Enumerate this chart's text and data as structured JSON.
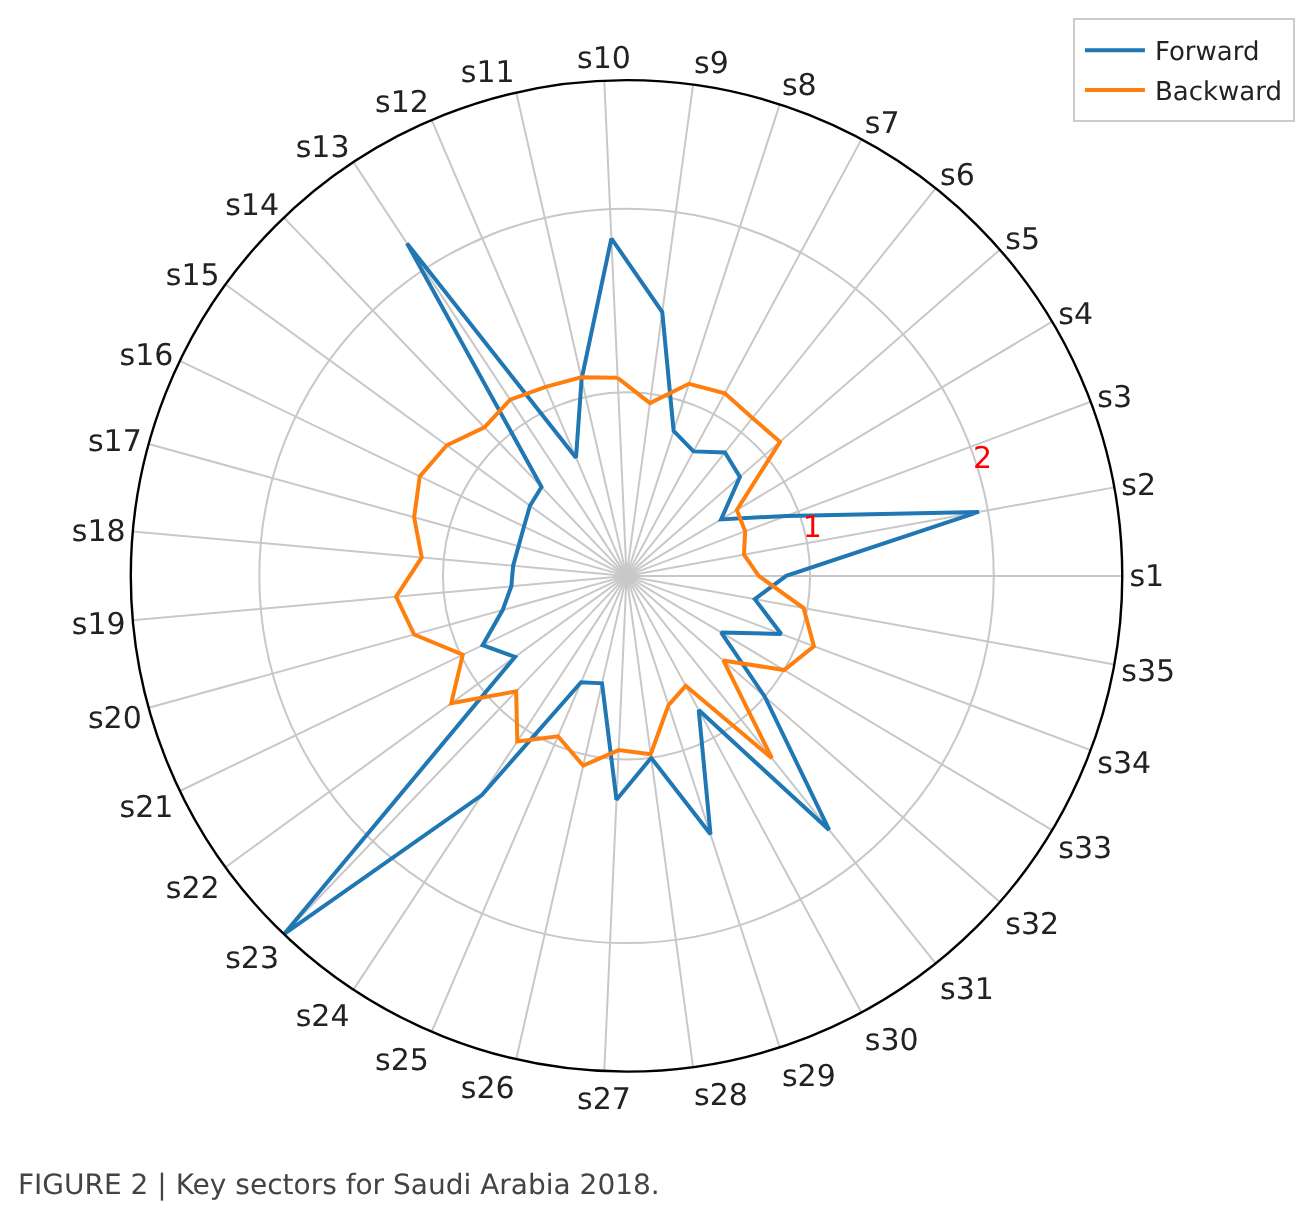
{
  "chart_data": {
    "type": "radar",
    "categories": [
      "s10",
      "s9",
      "s8",
      "s7",
      "s6",
      "s5",
      "s4",
      "s3",
      "s2",
      "s1",
      "s35",
      "s34",
      "s33",
      "s32",
      "s31",
      "s30",
      "s29",
      "s28",
      "s27",
      "s26",
      "s25",
      "s24",
      "s23",
      "s22",
      "s21",
      "s20",
      "s19",
      "s18",
      "s17",
      "s16",
      "s15",
      "s14",
      "s13",
      "s12",
      "s11"
    ],
    "series": [
      {
        "name": "Forward",
        "color": "#1f77b4",
        "values": [
          1.84,
          1.45,
          0.83,
          0.77,
          0.86,
          0.82,
          0.6,
          0.93,
          1.95,
          0.87,
          0.71,
          0.9,
          0.6,
          1.0,
          1.77,
          0.83,
          1.48,
          1.0,
          1.22,
          0.6,
          0.63,
          1.43,
          2.7,
          0.75,
          0.87,
          0.7,
          0.63,
          0.62,
          0.61,
          0.62,
          0.65,
          0.67,
          2.17,
          0.7,
          1.1
        ]
      },
      {
        "name": "Backward",
        "color": "#ff7f0e",
        "values": [
          1.08,
          0.95,
          1.1,
          1.13,
          1.1,
          1.11,
          0.7,
          0.69,
          0.65,
          0.72,
          0.98,
          1.09,
          1.0,
          0.7,
          1.27,
          0.68,
          0.74,
          0.98,
          0.95,
          1.06,
          0.95,
          1.08,
          0.87,
          1.18,
          0.99,
          1.2,
          1.26,
          1.12,
          1.2,
          1.25,
          1.21,
          1.12,
          1.15,
          1.12,
          1.11
        ]
      }
    ],
    "ylim": [
      0,
      2.7
    ],
    "yticks": [
      1,
      2
    ],
    "grid": true,
    "legend": "top right",
    "annotations": [
      "FIGURE 2 | Key sectors for Saudi Arabia 2018."
    ]
  }
}
